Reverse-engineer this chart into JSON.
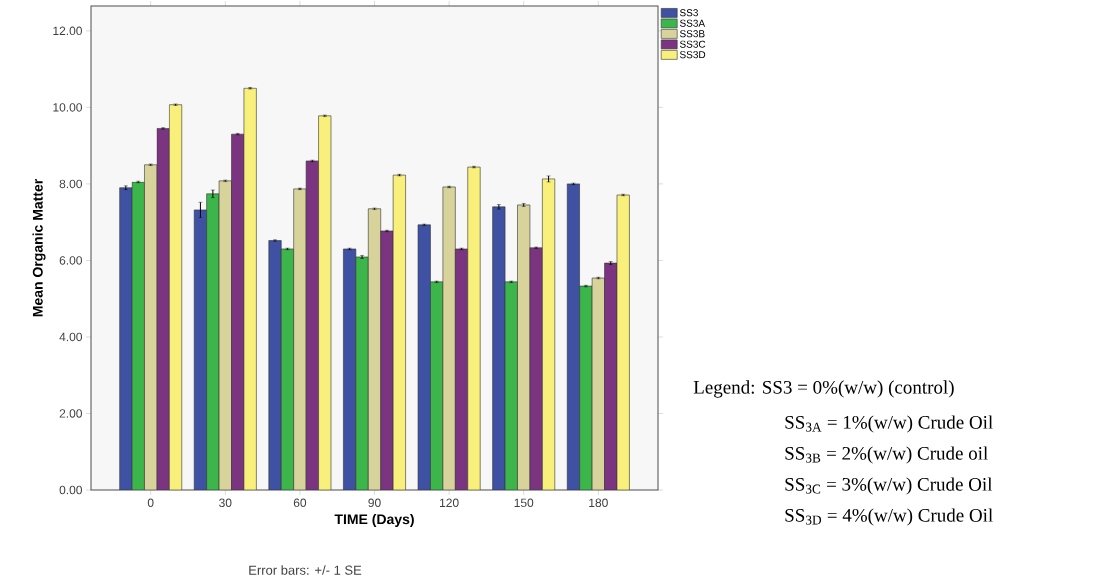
{
  "chart_data": {
    "type": "bar",
    "xlabel": "TIME (Days)",
    "ylabel": "Mean Organic Matter",
    "categories": [
      "0",
      "30",
      "60",
      "90",
      "120",
      "150",
      "180"
    ],
    "series": [
      {
        "name": "SS3",
        "color": "#3f51a3",
        "values": [
          7.9,
          7.32,
          6.52,
          6.3,
          6.93,
          7.4,
          8.0
        ],
        "errors": [
          0.05,
          0.2,
          0.02,
          0.02,
          0.02,
          0.06,
          0.02
        ]
      },
      {
        "name": "SS3A",
        "color": "#3cb54a",
        "values": [
          8.05,
          7.74,
          6.3,
          6.09,
          5.44,
          5.44,
          5.33
        ],
        "errors": [
          0.02,
          0.1,
          0.02,
          0.04,
          0.02,
          0.02,
          0.02
        ]
      },
      {
        "name": "SS3B",
        "color": "#d8d39b",
        "values": [
          8.5,
          8.08,
          7.87,
          7.35,
          7.92,
          7.45,
          5.54
        ],
        "errors": [
          0.02,
          0.02,
          0.02,
          0.02,
          0.02,
          0.04,
          0.02
        ]
      },
      {
        "name": "SS3C",
        "color": "#7b3580",
        "values": [
          9.45,
          9.3,
          8.6,
          6.77,
          6.3,
          6.33,
          5.93
        ],
        "errors": [
          0.02,
          0.02,
          0.02,
          0.02,
          0.02,
          0.02,
          0.04
        ]
      },
      {
        "name": "SS3D",
        "color": "#f8f07a",
        "values": [
          10.07,
          10.5,
          9.78,
          8.23,
          8.44,
          8.13,
          7.71
        ],
        "errors": [
          0.02,
          0.02,
          0.02,
          0.02,
          0.02,
          0.08,
          0.02
        ]
      }
    ],
    "ylim": [
      0,
      12.65
    ],
    "yticks": [
      {
        "value": 0,
        "label": "0.00"
      },
      {
        "value": 2,
        "label": "2.00"
      },
      {
        "value": 4,
        "label": "4.00"
      },
      {
        "value": 6,
        "label": "6.00"
      },
      {
        "value": 8,
        "label": "8.00"
      },
      {
        "value": 10,
        "label": "10.00"
      },
      {
        "value": 12,
        "label": "12.00"
      }
    ],
    "legend": "top right",
    "annotations": [
      "Error bars: +/- 1 SE",
      "Legend: SS3  = 0%(w/w) (control)",
      "SS$_{3A}$ = 1%(w/w) Crude Oil",
      "SS$_{3B}$ = 2%(w/w) Crude oil",
      "SS$_{3C}$ = 3%(w/w) Crude Oil",
      "SS$_{3D}$ = 4%(w/w) Crude Oil"
    ]
  }
}
